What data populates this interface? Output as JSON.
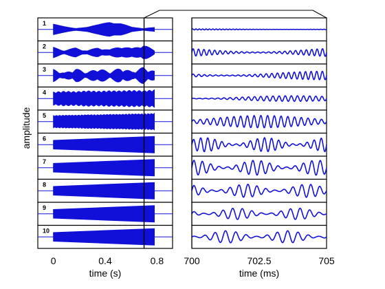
{
  "chart_data": [
    {
      "type": "area",
      "panel": "left",
      "xlabel": "time (s)",
      "ylabel": "amplitude",
      "xticks": [
        "0",
        "0.4",
        "0.8"
      ],
      "xlim": [
        -0.12,
        0.92
      ],
      "signal_start": 0.0,
      "signal_end": 0.78,
      "zoom_window": [
        0.7,
        0.705
      ],
      "rows": [
        {
          "label": "1",
          "envelope_shape": "slow chirp",
          "description_values": [
            0.6,
            0.35,
            0.15,
            0.25,
            0.55,
            0.95,
            0.75,
            0.25,
            0.1,
            0.3
          ]
        },
        {
          "label": "2",
          "envelope_shape": "medium chirp",
          "description_values": [
            0.6,
            0.25,
            0.55,
            0.2,
            0.6,
            0.3,
            0.8,
            0.45,
            1.0,
            0.2
          ]
        },
        {
          "label": "3",
          "envelope_shape": "beats",
          "description_values": [
            0.7,
            0.3,
            0.8,
            0.35,
            0.85,
            0.4,
            0.9,
            0.45,
            0.95,
            0.5
          ]
        },
        {
          "label": "4",
          "envelope_shape": "fast beats",
          "description_values": [
            0.75,
            0.85,
            0.8,
            0.9,
            0.85,
            0.9,
            0.9,
            0.95,
            0.9,
            1.0
          ]
        },
        {
          "label": "5",
          "envelope_shape": "faster beats",
          "description_values": [
            0.7,
            0.75,
            0.75,
            0.8,
            0.8,
            0.85,
            0.85,
            0.9,
            0.9,
            0.95
          ]
        },
        {
          "label": "6",
          "envelope_shape": "ramp",
          "description_values": [
            0.5,
            0.55,
            0.6,
            0.65,
            0.7,
            0.75,
            0.8,
            0.85,
            0.9,
            0.95
          ]
        },
        {
          "label": "7",
          "envelope_shape": "ramp",
          "description_values": [
            0.5,
            0.55,
            0.6,
            0.65,
            0.7,
            0.75,
            0.8,
            0.85,
            0.9,
            0.95
          ]
        },
        {
          "label": "8",
          "envelope_shape": "ramp",
          "description_values": [
            0.5,
            0.55,
            0.6,
            0.65,
            0.7,
            0.75,
            0.8,
            0.85,
            0.9,
            0.95
          ]
        },
        {
          "label": "9",
          "envelope_shape": "ramp",
          "description_values": [
            0.5,
            0.55,
            0.6,
            0.65,
            0.7,
            0.75,
            0.8,
            0.85,
            0.9,
            0.95
          ]
        },
        {
          "label": "10",
          "envelope_shape": "ramp",
          "description_values": [
            0.5,
            0.55,
            0.6,
            0.65,
            0.7,
            0.75,
            0.8,
            0.85,
            0.9,
            0.95
          ]
        }
      ]
    },
    {
      "type": "line",
      "panel": "right",
      "xlabel": "time (ms)",
      "xticks": [
        "700",
        "702.5",
        "705"
      ],
      "xlim": [
        700,
        705
      ],
      "rows": [
        {
          "label": "1",
          "amplitude": 0.06,
          "cycles": 40
        },
        {
          "label": "2",
          "amplitude": 0.55,
          "cycles": 25
        },
        {
          "label": "3",
          "amplitude": 0.48,
          "cycles": 24
        },
        {
          "label": "4",
          "amplitude": 0.32,
          "cycles": 22
        },
        {
          "label": "5",
          "amplitude": 0.7,
          "cycles": 20
        },
        {
          "label": "6",
          "amplitude": 0.8,
          "cycles": 19
        },
        {
          "label": "7",
          "amplitude": 0.85,
          "cycles": 16
        },
        {
          "label": "8",
          "amplitude": 0.75,
          "cycles": 15
        },
        {
          "label": "9",
          "amplitude": 0.65,
          "cycles": 14
        },
        {
          "label": "10",
          "amplitude": 0.7,
          "cycles": 13
        }
      ]
    }
  ],
  "colors": {
    "signal": "#1010d8",
    "frame": "#000000",
    "background": "#ffffff"
  }
}
